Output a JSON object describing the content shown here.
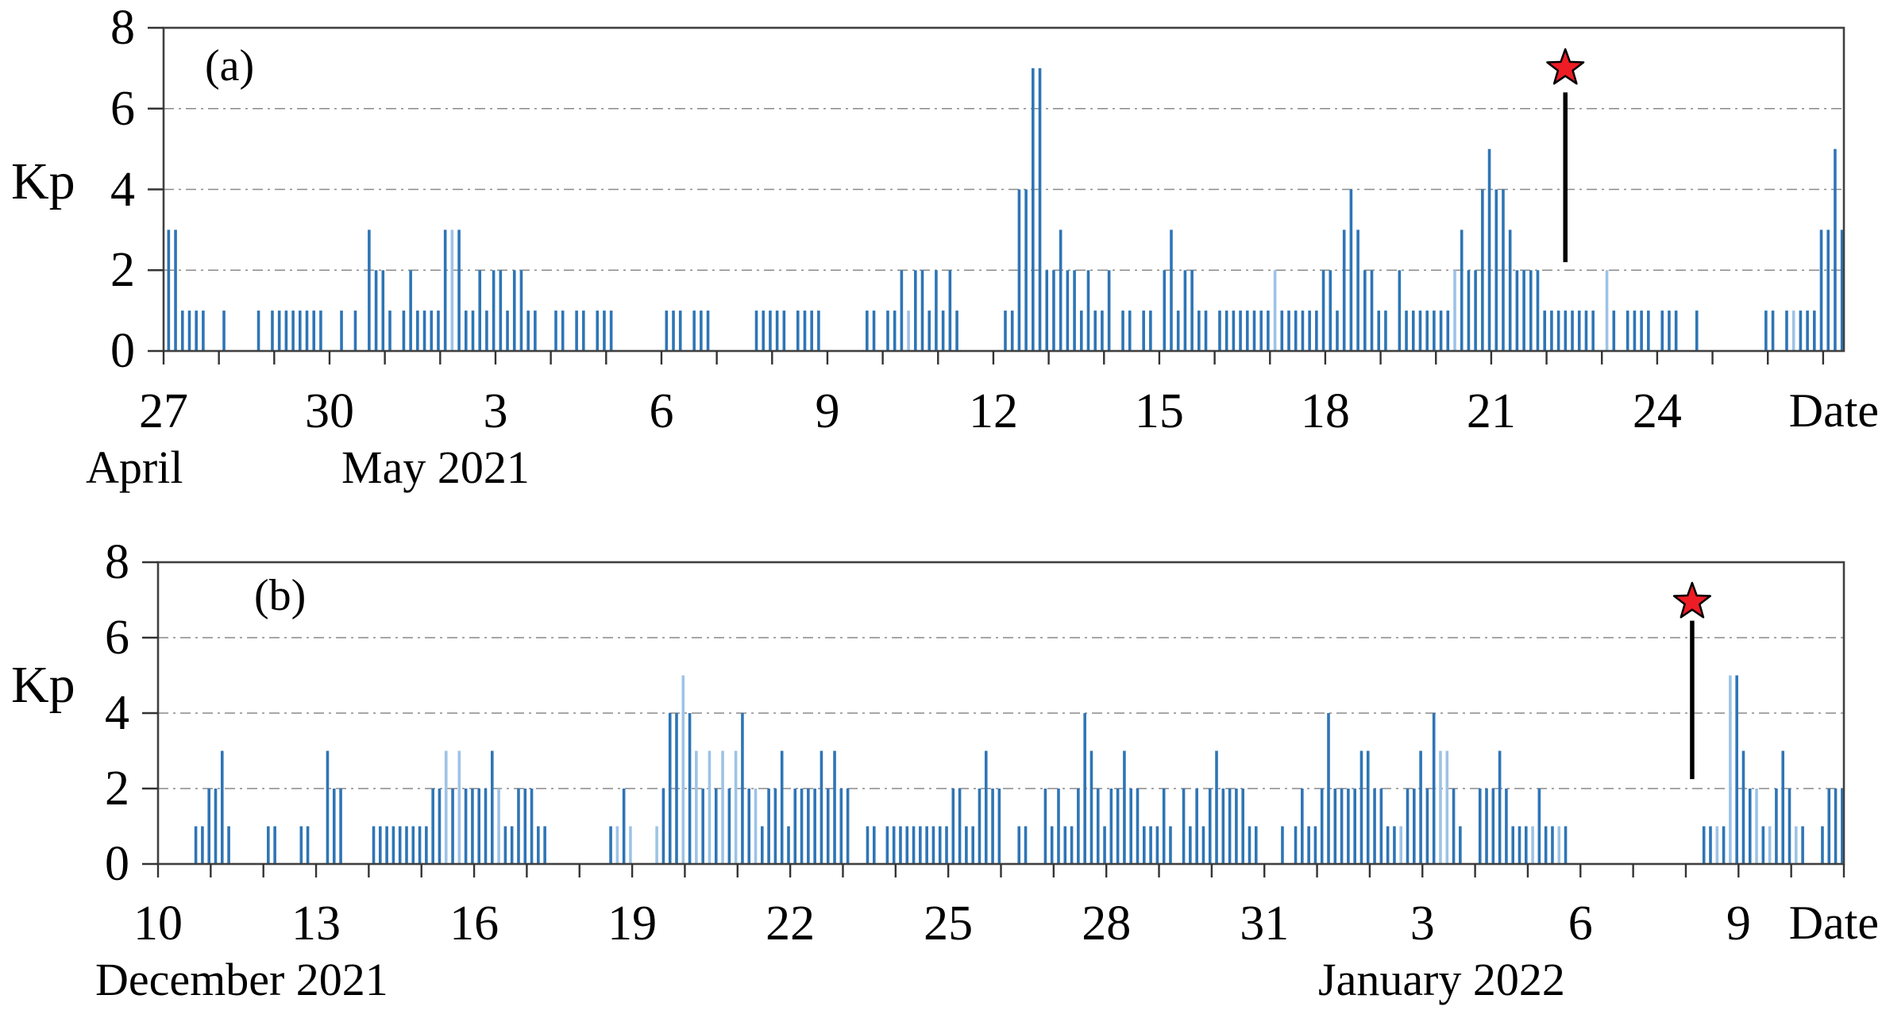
{
  "figure": {
    "description": "Two-panel bar plot of the geomagnetic Kp index (3-hour values) with red-star event markers",
    "bar_color": "#2E75B6",
    "light_bar_color": "#9DC3E6",
    "star_color": "#EE1C25",
    "marker_line_color": "#000000",
    "grid_color": "#8a8a8a",
    "axis_color": "#404040"
  },
  "chart_data": [
    {
      "type": "bar",
      "panel_label": "(a)",
      "ylabel": "Kp",
      "ylim": [
        0,
        8
      ],
      "yticks": [
        0,
        2,
        4,
        6,
        8
      ],
      "gridlines_at": [
        2,
        4,
        6
      ],
      "grid_style": "dash-dot",
      "slots_per_day": 8,
      "x_start": "April 27, 2021",
      "x_tick_label_every": 3,
      "x_tick_labels": [
        "27",
        "30",
        "3",
        "6",
        "9",
        "12",
        "15",
        "18",
        "21",
        "24"
      ],
      "date_axis_label": "Date",
      "month_labels": [
        {
          "text": "April",
          "x_day": 0.23
        },
        {
          "text": "May 2021",
          "x_day": 5.2
        }
      ],
      "kp_values": [
        3,
        3,
        1,
        1,
        1,
        1,
        0,
        0,
        1,
        0,
        0,
        0,
        0,
        1,
        0,
        1,
        1,
        1,
        1,
        1,
        1,
        1,
        1,
        0,
        0,
        1,
        0,
        1,
        0,
        3,
        2,
        2,
        1,
        0,
        1,
        2,
        1,
        1,
        1,
        1,
        3,
        3,
        3,
        1,
        1,
        2,
        1,
        2,
        2,
        1,
        2,
        2,
        1,
        1,
        0,
        0,
        1,
        1,
        0,
        1,
        1,
        0,
        1,
        1,
        1,
        0,
        0,
        0,
        0,
        0,
        0,
        0,
        1,
        1,
        1,
        0,
        1,
        1,
        1,
        0,
        0,
        0,
        0,
        0,
        0,
        1,
        1,
        1,
        1,
        1,
        0,
        1,
        1,
        1,
        1,
        0,
        0,
        0,
        0,
        0,
        0,
        1,
        1,
        0,
        1,
        1,
        2,
        1,
        2,
        2,
        1,
        2,
        1,
        2,
        1,
        0,
        0,
        0,
        0,
        0,
        0,
        1,
        1,
        4,
        4,
        7,
        7,
        2,
        2,
        3,
        2,
        2,
        1,
        2,
        1,
        1,
        2,
        0,
        1,
        1,
        0,
        1,
        1,
        0,
        2,
        3,
        1,
        2,
        2,
        1,
        1,
        0,
        1,
        1,
        1,
        1,
        1,
        1,
        1,
        1,
        2,
        1,
        1,
        1,
        1,
        1,
        1,
        2,
        2,
        1,
        3,
        4,
        3,
        2,
        2,
        1,
        1,
        0,
        2,
        1,
        1,
        1,
        1,
        1,
        1,
        1,
        2,
        3,
        2,
        2,
        4,
        5,
        4,
        4,
        3,
        2,
        2,
        2,
        2,
        1,
        1,
        1,
        1,
        1,
        1,
        1,
        1,
        0,
        2,
        1,
        0,
        1,
        1,
        1,
        1,
        0,
        1,
        1,
        1,
        0,
        0,
        1,
        0,
        0,
        0,
        0,
        0,
        0,
        0,
        0,
        0,
        1,
        1,
        0,
        1,
        1,
        1,
        1,
        1,
        3,
        3,
        5,
        3
      ],
      "light_bar_indices": [
        41,
        107,
        160,
        186,
        208,
        235
      ],
      "event_marker": {
        "date": "May 22, 2021",
        "x_day": 25.34,
        "line_kp": [
          2.2,
          6.4
        ],
        "star_kp": 7.0
      }
    },
    {
      "type": "bar",
      "panel_label": "(b)",
      "ylabel": "Kp",
      "ylim": [
        0,
        8
      ],
      "yticks": [
        0,
        2,
        4,
        6,
        8
      ],
      "gridlines_at": [
        2,
        4,
        6
      ],
      "grid_style": "dash-dot",
      "slots_per_day": 8,
      "x_start": "December 10, 2021",
      "x_tick_label_every": 3,
      "x_tick_labels": [
        "10",
        "13",
        "16",
        "19",
        "22",
        "25",
        "28",
        "31",
        "3",
        "6",
        "9"
      ],
      "date_axis_label": "Date",
      "month_labels": [
        {
          "text": "December 2021",
          "x_day": 2.95
        },
        {
          "text": "January 2022",
          "x_day": 24.6
        }
      ],
      "kp_values": [
        0,
        0,
        0,
        0,
        0,
        1,
        1,
        2,
        2,
        3,
        1,
        0,
        0,
        0,
        0,
        0,
        1,
        1,
        0,
        0,
        0,
        1,
        1,
        0,
        0,
        3,
        2,
        2,
        0,
        0,
        0,
        0,
        1,
        1,
        1,
        1,
        1,
        1,
        1,
        1,
        1,
        2,
        2,
        3,
        2,
        3,
        2,
        2,
        2,
        2,
        3,
        2,
        1,
        1,
        2,
        2,
        2,
        1,
        1,
        0,
        0,
        0,
        0,
        0,
        0,
        0,
        0,
        0,
        1,
        1,
        2,
        1,
        0,
        0,
        0,
        1,
        2,
        4,
        4,
        5,
        4,
        3,
        2,
        3,
        2,
        3,
        2,
        3,
        4,
        2,
        2,
        1,
        2,
        2,
        3,
        1,
        2,
        2,
        2,
        2,
        3,
        2,
        3,
        2,
        2,
        0,
        0,
        1,
        1,
        0,
        1,
        1,
        1,
        1,
        1,
        1,
        1,
        1,
        1,
        1,
        2,
        2,
        1,
        1,
        2,
        3,
        2,
        2,
        0,
        0,
        1,
        1,
        0,
        0,
        2,
        1,
        2,
        1,
        1,
        2,
        4,
        3,
        2,
        1,
        2,
        2,
        3,
        2,
        2,
        1,
        1,
        1,
        2,
        1,
        0,
        2,
        1,
        2,
        1,
        2,
        3,
        2,
        2,
        2,
        2,
        1,
        1,
        0,
        0,
        0,
        1,
        0,
        1,
        2,
        1,
        1,
        2,
        4,
        2,
        2,
        2,
        2,
        3,
        3,
        2,
        2,
        1,
        1,
        1,
        2,
        2,
        3,
        2,
        4,
        3,
        3,
        2,
        1,
        0,
        0,
        2,
        2,
        2,
        3,
        2,
        1,
        1,
        1,
        1,
        2,
        1,
        1,
        1,
        1,
        0,
        0,
        0,
        0,
        0,
        0,
        0,
        0,
        0,
        0,
        0,
        0,
        0,
        0,
        0,
        0,
        0,
        0,
        0,
        0,
        1,
        1,
        1,
        1,
        5,
        5,
        3,
        2,
        2,
        1,
        1,
        2,
        3,
        2,
        1,
        1,
        0,
        0,
        1,
        2,
        2,
        2
      ],
      "light_bar_indices": [
        43,
        45,
        51,
        69,
        71,
        75,
        79,
        81,
        83,
        85,
        87,
        90,
        188,
        194,
        195,
        208,
        212,
        236,
        238,
        242,
        244,
        248
      ],
      "event_marker": {
        "date": "January 8, 2022",
        "x_day": 29.12,
        "line_kp": [
          2.25,
          6.45
        ],
        "star_kp": 6.95
      }
    }
  ]
}
